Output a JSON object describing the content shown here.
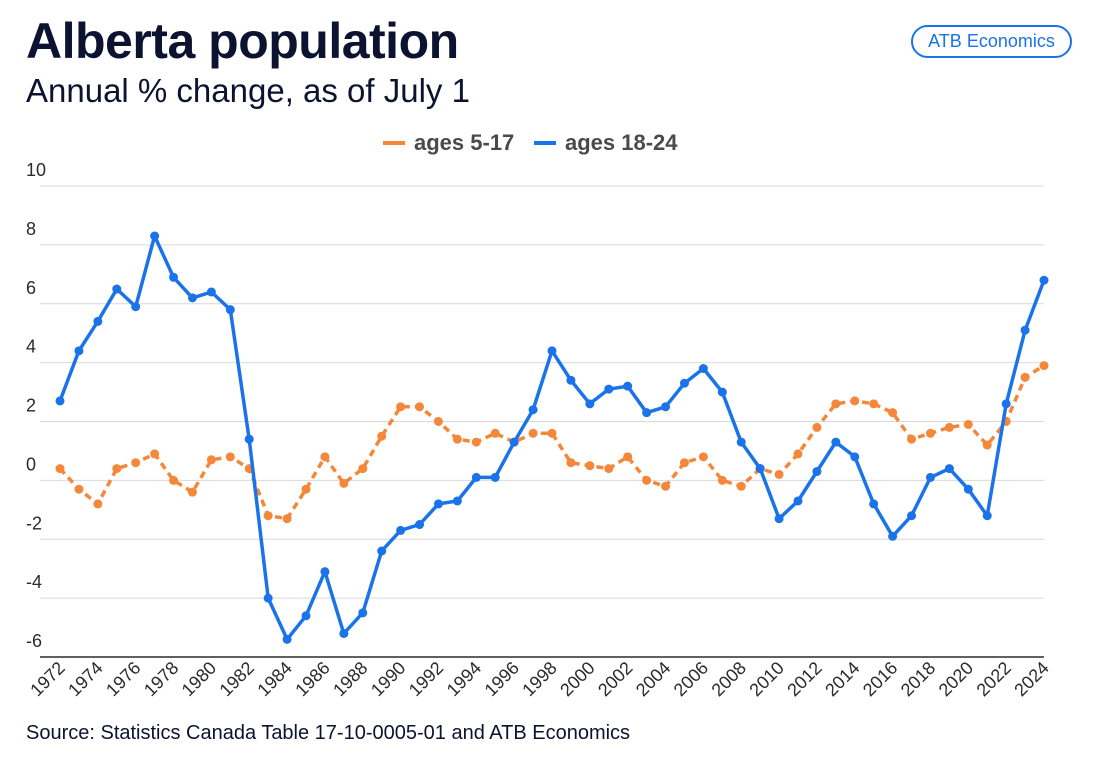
{
  "header": {
    "title": "Alberta population",
    "subtitle": "Annual % change, as of July 1",
    "badge": "ATB Economics"
  },
  "footer": {
    "source": "Source: Statistics Canada Table 17-10-0005-01 and ATB Economics"
  },
  "colors": {
    "series_5_17": "#f5873a",
    "series_18_24": "#1a73e8",
    "grid": "#d9d9d9",
    "axis": "#2b2b2b"
  },
  "chart_data": {
    "type": "line",
    "title": "Alberta population",
    "subtitle": "Annual % change, as of July 1",
    "xlabel": "",
    "ylabel": "",
    "ylim": [
      -6,
      10
    ],
    "yticks": [
      10,
      8,
      6,
      4,
      2,
      0,
      -2,
      -4,
      -6
    ],
    "legend_position": "top-center",
    "x": [
      1972,
      1973,
      1974,
      1975,
      1976,
      1977,
      1978,
      1979,
      1980,
      1981,
      1982,
      1983,
      1984,
      1985,
      1986,
      1987,
      1988,
      1989,
      1990,
      1991,
      1992,
      1993,
      1994,
      1995,
      1996,
      1997,
      1998,
      1999,
      2000,
      2001,
      2002,
      2003,
      2004,
      2005,
      2006,
      2007,
      2008,
      2009,
      2010,
      2011,
      2012,
      2013,
      2014,
      2015,
      2016,
      2017,
      2018,
      2019,
      2020,
      2021,
      2022,
      2023,
      2024
    ],
    "xtick_labels": [
      "1972",
      "1974",
      "1976",
      "1978",
      "1980",
      "1982",
      "1984",
      "1986",
      "1988",
      "1990",
      "1992",
      "1994",
      "1996",
      "1998",
      "2000",
      "2002",
      "2004",
      "2006",
      "2008",
      "2010",
      "2012",
      "2014",
      "2016",
      "2018",
      "2020",
      "2022",
      "2024"
    ],
    "series": [
      {
        "name": "ages 5-17",
        "color": "#f5873a",
        "dashed": true,
        "values": [
          0.4,
          -0.3,
          -0.8,
          0.4,
          0.6,
          0.9,
          0.0,
          -0.4,
          0.7,
          0.8,
          0.4,
          -1.2,
          -1.3,
          -0.3,
          0.8,
          -0.1,
          0.4,
          1.5,
          2.5,
          2.5,
          2.0,
          1.4,
          1.3,
          1.6,
          1.3,
          1.6,
          1.6,
          0.6,
          0.5,
          0.4,
          0.8,
          0.0,
          -0.2,
          0.6,
          0.8,
          0.0,
          -0.2,
          0.4,
          0.2,
          0.9,
          1.8,
          2.6,
          2.7,
          2.6,
          2.3,
          1.4,
          1.6,
          1.8,
          1.9,
          1.2,
          2.0,
          3.5,
          3.9
        ]
      },
      {
        "name": "ages 18-24",
        "color": "#1a73e8",
        "dashed": false,
        "values": [
          2.7,
          4.4,
          5.4,
          6.5,
          5.9,
          8.3,
          6.9,
          6.2,
          6.4,
          5.8,
          1.4,
          -4.0,
          -5.4,
          -4.6,
          -3.1,
          -5.2,
          -4.5,
          -2.4,
          -1.7,
          -1.5,
          -0.8,
          -0.7,
          0.1,
          0.1,
          1.3,
          2.4,
          4.4,
          3.4,
          2.6,
          3.1,
          3.2,
          2.3,
          2.5,
          3.3,
          3.8,
          3.0,
          1.3,
          0.4,
          -1.3,
          -0.7,
          0.3,
          1.3,
          0.8,
          -0.8,
          -1.9,
          -1.2,
          0.1,
          0.4,
          -0.3,
          -1.2,
          2.6,
          5.1,
          6.8
        ]
      }
    ]
  }
}
